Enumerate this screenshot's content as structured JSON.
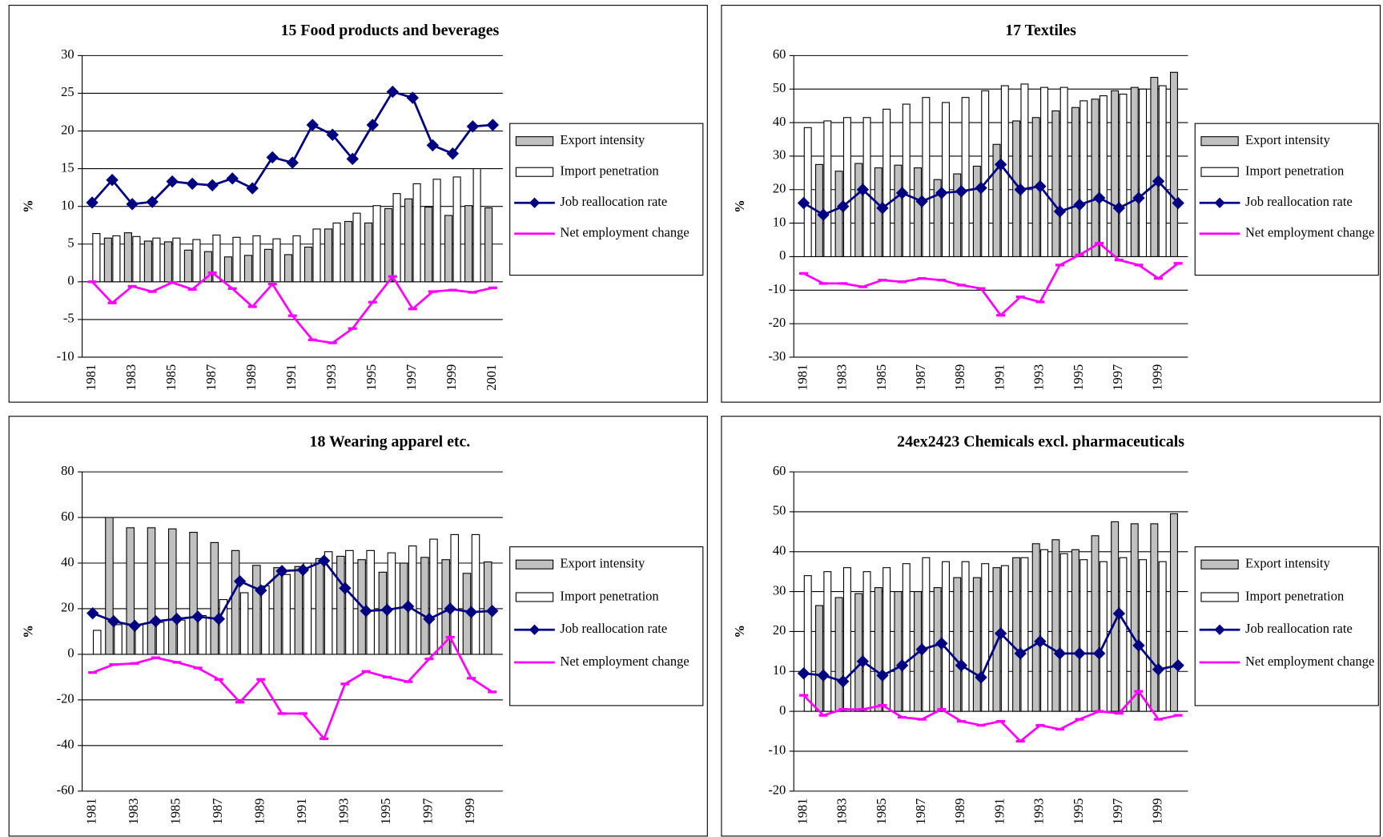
{
  "chart_data": [
    {
      "type": "bar",
      "title": "15 Food products and beverages",
      "y_label": "%",
      "legend": "right",
      "grid": true,
      "categories": [
        "1981",
        null,
        "1983",
        null,
        "1985",
        null,
        "1987",
        null,
        "1989",
        null,
        "1991",
        null,
        "1993",
        null,
        "1995",
        null,
        "1997",
        null,
        "1999",
        null,
        "2001"
      ],
      "ylim": [
        -10,
        30
      ],
      "yticks": [
        -10,
        -5,
        0,
        5,
        10,
        15,
        20,
        25,
        30
      ],
      "series": [
        {
          "name": "Export intensity",
          "type": "bar",
          "color": "#c0c0c0",
          "values": [
            null,
            5.8,
            6.5,
            5.4,
            5.3,
            4.2,
            4.0,
            3.3,
            3.5,
            4.3,
            3.6,
            4.6,
            7.0,
            8.0,
            7.8,
            9.7,
            11.0,
            9.9,
            8.8,
            10.1,
            9.8
          ]
        },
        {
          "name": "Import penetration",
          "type": "bar",
          "color": "#ffffff",
          "values": [
            6.4,
            6.1,
            6.0,
            5.8,
            5.8,
            5.6,
            6.2,
            5.9,
            6.1,
            5.7,
            6.1,
            7.0,
            7.8,
            9.1,
            10.1,
            11.7,
            13.0,
            13.6,
            13.9,
            15.0,
            null
          ]
        },
        {
          "name": "Job reallocation rate",
          "type": "line",
          "marker": "diamond",
          "color": "#000080",
          "values": [
            10.5,
            13.5,
            10.3,
            10.6,
            13.3,
            13.0,
            12.8,
            13.7,
            12.4,
            16.5,
            15.8,
            20.8,
            19.5,
            16.3,
            20.8,
            25.2,
            24.4,
            18.1,
            17.0,
            20.6,
            20.8
          ]
        },
        {
          "name": "Net employment change",
          "type": "line",
          "marker": "dash",
          "color": "#ff00ff",
          "values": [
            0,
            -2.8,
            -0.6,
            -1.3,
            -0.1,
            -1.0,
            1.2,
            -0.9,
            -3.3,
            -0.3,
            -4.5,
            -7.7,
            -8.1,
            -6.2,
            -2.7,
            0.7,
            -3.6,
            -1.3,
            -1.1,
            -1.4,
            -0.8
          ]
        }
      ]
    },
    {
      "type": "bar",
      "title": "17 Textiles",
      "y_label": "%",
      "legend": "right",
      "grid": true,
      "categories": [
        "1981",
        null,
        "1983",
        null,
        "1985",
        null,
        "1987",
        null,
        "1989",
        null,
        "1991",
        null,
        "1993",
        null,
        "1995",
        null,
        "1997",
        null,
        "1999",
        null
      ],
      "ylim": [
        -30,
        60
      ],
      "yticks": [
        -30,
        -20,
        -10,
        0,
        10,
        20,
        30,
        40,
        50,
        60
      ],
      "series": [
        {
          "name": "Export intensity",
          "type": "bar",
          "color": "#c0c0c0",
          "values": [
            null,
            27.5,
            25.5,
            27.8,
            26.5,
            27.3,
            26.5,
            23,
            24.7,
            27,
            33.5,
            40.5,
            41.5,
            43.5,
            44.5,
            47,
            49.5,
            50.5,
            53.5,
            55
          ]
        },
        {
          "name": "Import penetration",
          "type": "bar",
          "color": "#ffffff",
          "values": [
            38.5,
            40.5,
            41.5,
            41.5,
            44,
            45.5,
            47.5,
            46,
            47.5,
            49.5,
            51,
            51.5,
            50.5,
            50.5,
            46.5,
            48,
            48.5,
            50,
            51,
            null
          ]
        },
        {
          "name": "Job reallocation rate",
          "type": "line",
          "marker": "diamond",
          "color": "#000080",
          "values": [
            16,
            12.5,
            15,
            20,
            14.5,
            19,
            16.5,
            19,
            19.5,
            20.5,
            27.5,
            20,
            21,
            13.5,
            15.5,
            17.5,
            14.5,
            17.5,
            22.5,
            16
          ]
        },
        {
          "name": "Net employment change",
          "type": "line",
          "marker": "dash",
          "color": "#ff00ff",
          "values": [
            -5,
            -8,
            -8,
            -9,
            -7,
            -7.5,
            -6.5,
            -7,
            -8.5,
            -9.5,
            -17.5,
            -12,
            -13.5,
            -2.5,
            0.5,
            4,
            -1,
            -2.5,
            -6.5,
            -2
          ]
        }
      ]
    },
    {
      "type": "bar",
      "title": "18 Wearing apparel etc.",
      "y_label": "%",
      "legend": "right",
      "grid": true,
      "categories": [
        "1981",
        null,
        "1983",
        null,
        "1985",
        null,
        "1987",
        null,
        "1989",
        null,
        "1991",
        null,
        "1993",
        null,
        "1995",
        null,
        "1997",
        null,
        "1999",
        null
      ],
      "ylim": [
        -60,
        80
      ],
      "yticks": [
        -60,
        -40,
        -20,
        0,
        20,
        40,
        60,
        80
      ],
      "series": [
        {
          "name": "Export intensity",
          "type": "bar",
          "color": "#c0c0c0",
          "values": [
            null,
            60,
            55.5,
            55.5,
            55,
            53.5,
            49,
            45.5,
            39,
            38,
            38.5,
            42,
            43,
            41.5,
            36,
            40,
            42.5,
            41.5,
            35.5,
            40.5
          ]
        },
        {
          "name": "Import penetration",
          "type": "bar",
          "color": "#ffffff",
          "values": [
            10.5,
            13,
            13,
            14,
            15,
            17,
            24,
            27,
            30,
            35,
            40,
            45,
            45.5,
            45.5,
            44.5,
            47.5,
            50.5,
            52.5,
            52.5,
            null
          ]
        },
        {
          "name": "Job reallocation rate",
          "type": "line",
          "marker": "diamond",
          "color": "#000080",
          "values": [
            18,
            14.5,
            12.5,
            14.5,
            15.5,
            16.5,
            15.5,
            32,
            28,
            36.5,
            37,
            41,
            29,
            19,
            19.5,
            21,
            15.5,
            20,
            18.5,
            19
          ]
        },
        {
          "name": "Net employment change",
          "type": "line",
          "marker": "dash",
          "color": "#ff00ff",
          "values": [
            -8,
            -4.5,
            -4,
            -1.5,
            -3.5,
            -6,
            -11,
            -21,
            -11,
            -26,
            -26,
            -37,
            -13,
            -7.5,
            -10,
            -12,
            -2,
            7.5,
            -10.5,
            -16.5
          ]
        }
      ]
    },
    {
      "type": "bar",
      "title": "24ex2423 Chemicals excl. pharmaceuticals",
      "y_label": "%",
      "legend": "right",
      "grid": true,
      "categories": [
        "1981",
        null,
        "1983",
        null,
        "1985",
        null,
        "1987",
        null,
        "1989",
        null,
        "1991",
        null,
        "1993",
        null,
        "1995",
        null,
        "1997",
        null,
        "1999",
        null
      ],
      "ylim": [
        -20,
        60
      ],
      "yticks": [
        -20,
        -10,
        0,
        10,
        20,
        30,
        40,
        50,
        60
      ],
      "series": [
        {
          "name": "Export intensity",
          "type": "bar",
          "color": "#c0c0c0",
          "values": [
            null,
            26.5,
            28.5,
            29.5,
            31,
            30,
            30,
            31,
            33.5,
            33.5,
            36,
            38.5,
            42,
            43,
            40.5,
            44,
            47.5,
            47,
            47,
            49.5
          ]
        },
        {
          "name": "Import penetration",
          "type": "bar",
          "color": "#ffffff",
          "values": [
            34,
            35,
            36,
            35,
            36,
            37,
            38.5,
            37.5,
            37.5,
            37,
            36.5,
            38.5,
            40.5,
            39.5,
            38,
            37.5,
            38.5,
            38,
            37.5,
            null
          ]
        },
        {
          "name": "Job reallocation rate",
          "type": "line",
          "marker": "diamond",
          "color": "#000080",
          "values": [
            9.5,
            9,
            7.5,
            12.5,
            9,
            11.5,
            15.5,
            17,
            11.5,
            8.5,
            19.5,
            14.5,
            17.5,
            14.5,
            14.5,
            14.5,
            24.5,
            16.5,
            10.5,
            11.5
          ]
        },
        {
          "name": "Net employment change",
          "type": "line",
          "marker": "dash",
          "color": "#ff00ff",
          "values": [
            4,
            -1,
            0.5,
            0.5,
            1.5,
            -1.5,
            -2,
            0.5,
            -2.5,
            -3.5,
            -2.5,
            -7.5,
            -3.5,
            -4.5,
            -2,
            0,
            -0.5,
            5,
            -2,
            -1
          ]
        }
      ]
    }
  ]
}
